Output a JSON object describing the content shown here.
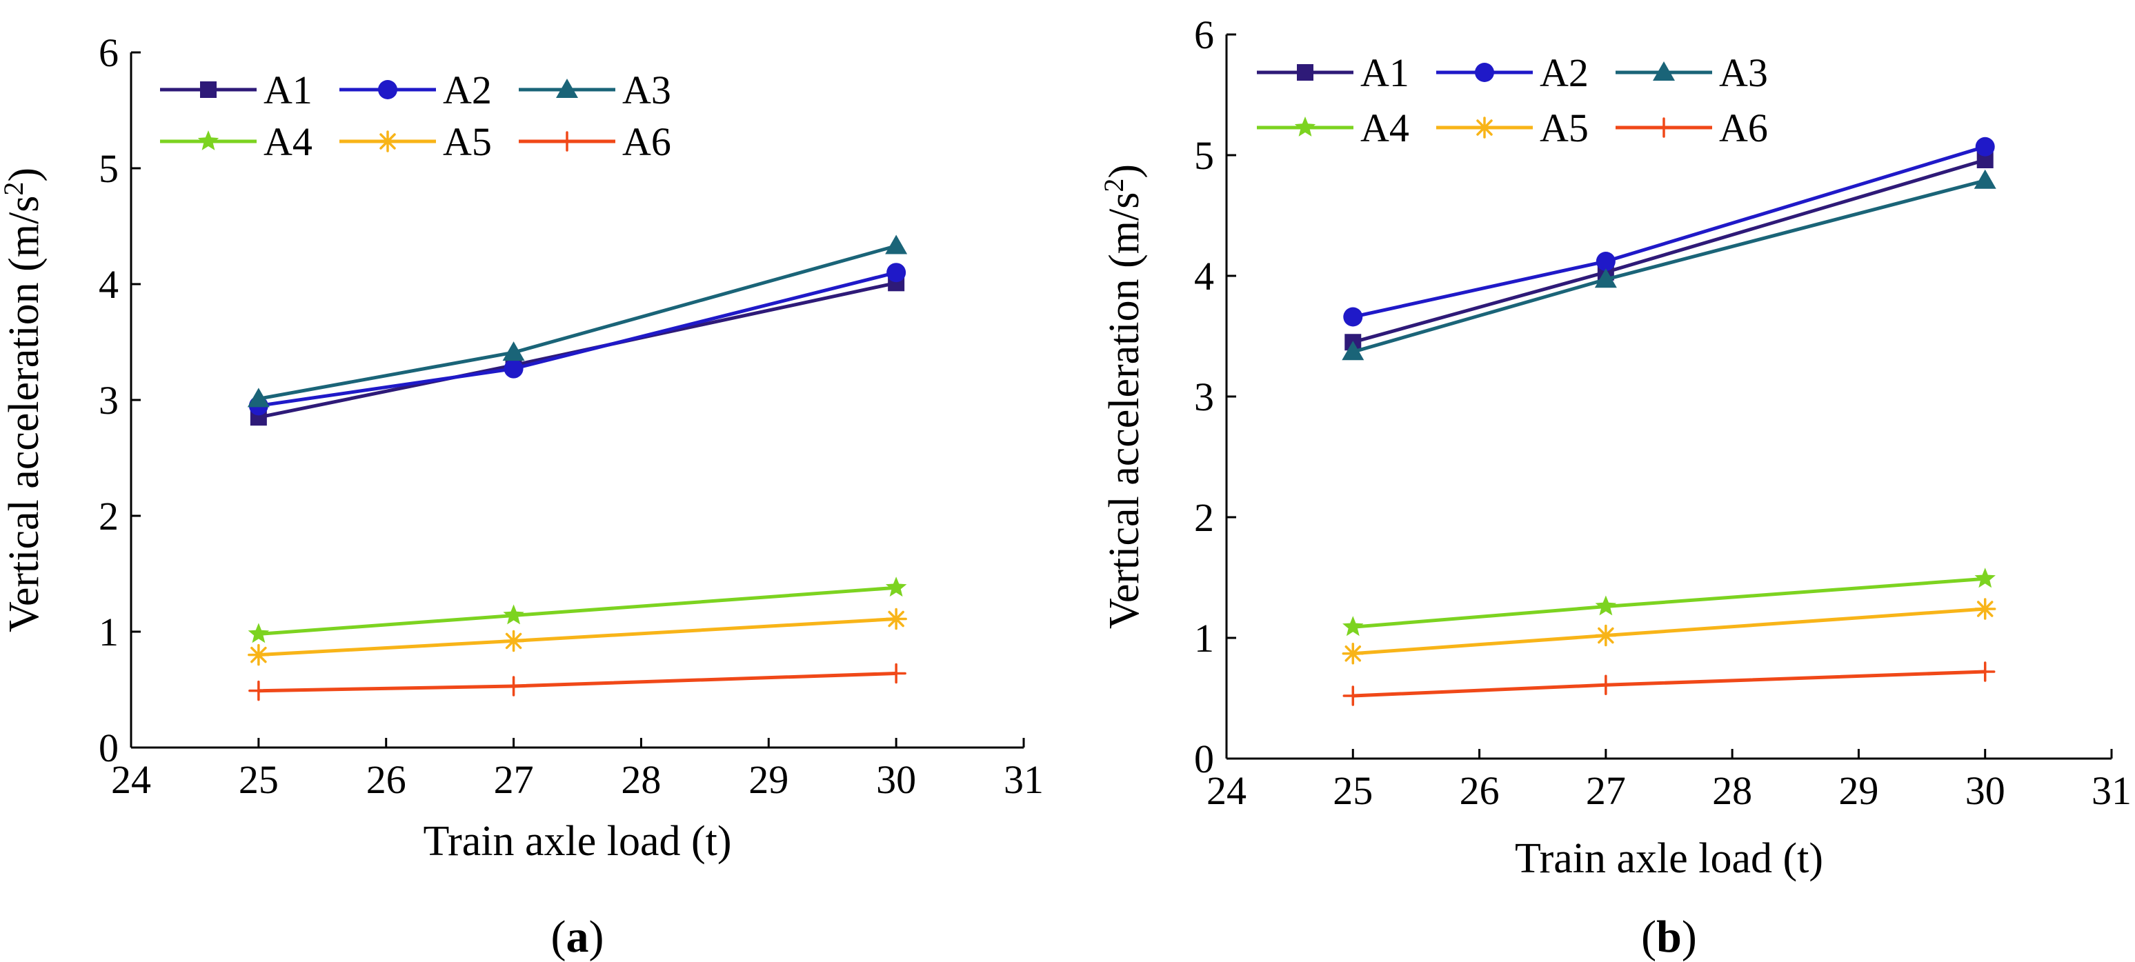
{
  "figure": {
    "series_colors": {
      "A1": "#2e1a78",
      "A2": "#1f19c8",
      "A3": "#1a6478",
      "A4": "#7cd320",
      "A5": "#f8b418",
      "A6": "#f04818"
    },
    "series_markers": {
      "A1": "square",
      "A2": "circle",
      "A3": "triangle",
      "A4": "star",
      "A5": "asterisk",
      "A6": "plus"
    }
  },
  "chart_data": [
    {
      "type": "line",
      "panel_label": "a",
      "xlabel": "Train axle load (t)",
      "ylabel_main": "Vertical acceleration (m/s",
      "ylabel_sup": "2",
      "ylabel_end": ")",
      "xlim": [
        24,
        31
      ],
      "ylim": [
        0,
        6
      ],
      "xticks": [
        24,
        25,
        26,
        27,
        28,
        29,
        30,
        31
      ],
      "yticks": [
        0,
        1,
        2,
        3,
        4,
        5,
        6
      ],
      "legend_placement": "top-left",
      "x": [
        25,
        27,
        30
      ],
      "series": [
        {
          "name": "A1",
          "values": [
            2.85,
            3.3,
            4.01
          ]
        },
        {
          "name": "A2",
          "values": [
            2.95,
            3.27,
            4.1
          ]
        },
        {
          "name": "A3",
          "values": [
            3.01,
            3.41,
            4.33
          ]
        },
        {
          "name": "A4",
          "values": [
            0.98,
            1.14,
            1.38
          ]
        },
        {
          "name": "A5",
          "values": [
            0.8,
            0.92,
            1.11
          ]
        },
        {
          "name": "A6",
          "values": [
            0.49,
            0.53,
            0.64
          ]
        }
      ]
    },
    {
      "type": "line",
      "panel_label": "b",
      "xlabel": "Train axle load (t)",
      "ylabel_main": "Vertical acceleration (m/s",
      "ylabel_sup": "2",
      "ylabel_end": ")",
      "xlim": [
        24,
        31
      ],
      "ylim": [
        0,
        6
      ],
      "xticks": [
        24,
        25,
        26,
        27,
        28,
        29,
        30,
        31
      ],
      "yticks": [
        0,
        1,
        2,
        3,
        4,
        5,
        6
      ],
      "legend_placement": "top-left",
      "x": [
        25,
        27,
        30
      ],
      "series": [
        {
          "name": "A1",
          "values": [
            3.45,
            4.03,
            4.96
          ]
        },
        {
          "name": "A2",
          "values": [
            3.66,
            4.12,
            5.07
          ]
        },
        {
          "name": "A3",
          "values": [
            3.37,
            3.97,
            4.79
          ]
        },
        {
          "name": "A4",
          "values": [
            1.09,
            1.26,
            1.49
          ]
        },
        {
          "name": "A5",
          "values": [
            0.87,
            1.02,
            1.24
          ]
        },
        {
          "name": "A6",
          "values": [
            0.52,
            0.61,
            0.72
          ]
        }
      ]
    }
  ]
}
